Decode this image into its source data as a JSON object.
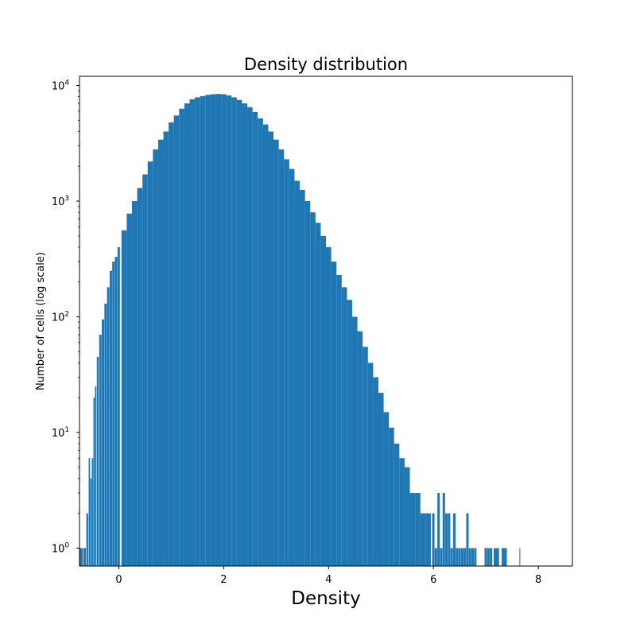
{
  "chart_data": {
    "type": "bar",
    "subtype": "histogram",
    "title": "Density distribution",
    "xlabel": "Density",
    "ylabel": "Number of cells (log scale)",
    "y_scale": "log",
    "xlim": [
      -0.75,
      8.65
    ],
    "ylim": [
      0.7,
      12000
    ],
    "x_ticks": [
      {
        "value": 0,
        "label": "0"
      },
      {
        "value": 2,
        "label": "2"
      },
      {
        "value": 4,
        "label": "4"
      },
      {
        "value": 6,
        "label": "6"
      },
      {
        "value": 8,
        "label": "8"
      }
    ],
    "y_ticks": [
      {
        "value": 1,
        "base": "10",
        "exp": "0"
      },
      {
        "value": 10,
        "base": "10",
        "exp": "1"
      },
      {
        "value": 100,
        "base": "10",
        "exp": "2"
      },
      {
        "value": 1000,
        "base": "10",
        "exp": "3"
      },
      {
        "value": 10000,
        "base": "10",
        "exp": "4"
      }
    ],
    "bar_color": "#1f77b4",
    "grid": false,
    "legend": "none",
    "series": [
      {
        "x": [
          -0.72,
          -0.65,
          -0.6,
          -0.56,
          -0.53,
          -0.5,
          -0.47,
          -0.44,
          -0.4,
          -0.35,
          -0.3,
          -0.25,
          -0.2,
          -0.15,
          -0.1,
          -0.05,
          0.0,
          0.1,
          0.2,
          0.3,
          0.4,
          0.5,
          0.6,
          0.7,
          0.8,
          0.9,
          1.0,
          1.1,
          1.2,
          1.3,
          1.4,
          1.5,
          1.6,
          1.7,
          1.8,
          1.9,
          2.0,
          2.1,
          2.2,
          2.3,
          2.4,
          2.5,
          2.6,
          2.7,
          2.8,
          2.9,
          3.0,
          3.1,
          3.2,
          3.3,
          3.4,
          3.5,
          3.6,
          3.7,
          3.8,
          3.9,
          4.0,
          4.1,
          4.2,
          4.3,
          4.4,
          4.5,
          4.6,
          4.7,
          4.8,
          4.9,
          5.0,
          5.1,
          5.2,
          5.3,
          5.4,
          5.5,
          5.6,
          5.7,
          5.8,
          5.9,
          6.0,
          6.05,
          6.1,
          6.15,
          6.2,
          6.25,
          6.3,
          6.35,
          6.4,
          6.45,
          6.5,
          6.55,
          6.6,
          6.65,
          6.7,
          6.75,
          6.8,
          7.0,
          7.05,
          7.1,
          7.2,
          7.35,
          7.65
        ],
        "values": [
          1,
          1,
          2,
          6,
          4,
          6,
          20,
          25,
          45,
          70,
          95,
          130,
          180,
          250,
          300,
          330,
          400,
          560,
          780,
          1000,
          1300,
          1700,
          2200,
          2800,
          3400,
          4000,
          4800,
          5500,
          6300,
          7000,
          7600,
          7900,
          8100,
          8300,
          8400,
          8450,
          8400,
          8200,
          7900,
          7500,
          7000,
          6500,
          5900,
          5200,
          4600,
          4000,
          3400,
          2800,
          2300,
          1900,
          1500,
          1250,
          1000,
          800,
          650,
          500,
          400,
          300,
          230,
          180,
          140,
          100,
          75,
          55,
          40,
          30,
          22,
          15,
          11,
          8,
          6,
          5,
          3,
          3,
          2,
          2,
          2,
          1,
          3,
          1,
          3,
          2,
          2,
          1,
          2,
          1,
          1,
          1,
          1,
          2,
          1,
          1,
          1,
          1,
          1,
          1,
          1,
          1,
          1
        ]
      }
    ]
  }
}
